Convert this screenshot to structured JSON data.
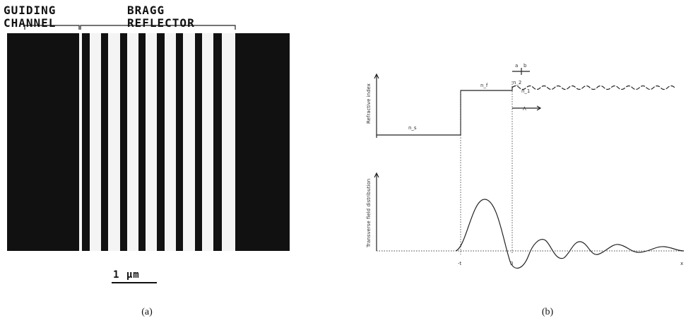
{
  "panel_a": {
    "channel_label": [
      "GUIDING",
      "CHANNEL"
    ],
    "reflector_label": [
      "BRAGG",
      "REFLECTOR"
    ],
    "scale_bar": "1 μm",
    "caption": "(a)"
  },
  "panel_b": {
    "y_label_top": "Refractive index",
    "y_label_bottom": "Transverse field distribution",
    "index_labels": [
      "n_s",
      "n_f",
      "n_2",
      "n_1"
    ],
    "period": "Λ",
    "widths": [
      "a",
      "b"
    ],
    "x_labels": [
      "-t",
      "0",
      "x"
    ],
    "caption": "(b)"
  }
}
